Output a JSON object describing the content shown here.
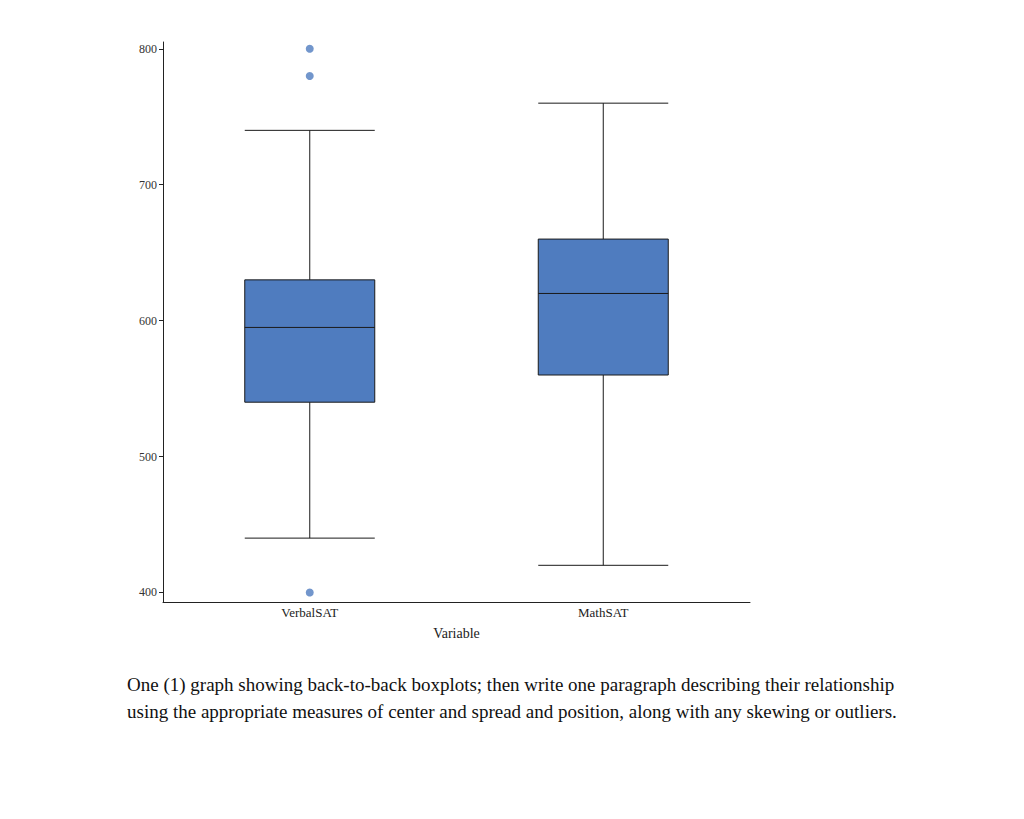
{
  "chart_data": {
    "type": "boxplot",
    "x_label": "Variable",
    "categories": [
      "VerbalSAT",
      "MathSAT"
    ],
    "boxes": [
      {
        "min": 440,
        "q1": 540,
        "median": 595,
        "q3": 630,
        "max": 740,
        "outliers": [
          800,
          780,
          400
        ]
      },
      {
        "min": 420,
        "q1": 560,
        "median": 620,
        "q3": 660,
        "max": 760,
        "outliers": []
      }
    ],
    "color": "#4f7cbf",
    "ylim": [
      393,
      805
    ],
    "yticks": [
      400,
      500,
      600,
      700,
      800
    ],
    "grid": false,
    "caption": "One (1) graph showing back-to-back boxplots; then write one paragraph describing their relationship using the appropriate measures of center and spread and position, along with any skewing or outliers."
  }
}
